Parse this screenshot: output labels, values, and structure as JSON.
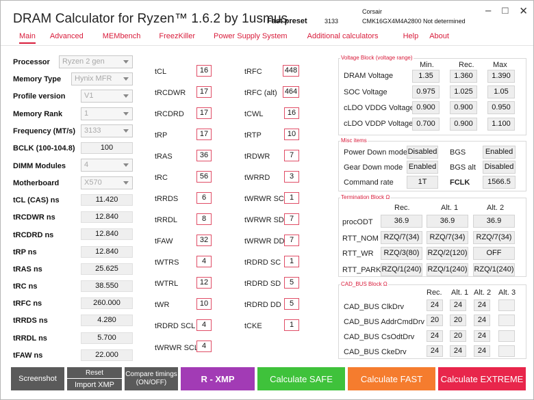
{
  "app": {
    "title": "DRAM Calculator for Ryzen™ 1.6.2 by 1usmus",
    "fast_preset_label": "Fast preset",
    "fast_preset_value": "3133",
    "memory_brand": "Corsair",
    "memory_part": "CMK16GX4M4A2800 Not determined",
    "window_buttons": {
      "minimize": "–",
      "maximize": "□",
      "close": "✕"
    }
  },
  "menu": [
    "Main",
    "Advanced",
    "MEMbench",
    "FreezKiller",
    "Power Supply System",
    "Additional calculators",
    "Help",
    "About"
  ],
  "left_settings": [
    {
      "label": "Processor",
      "value": "Ryzen 2 gen",
      "type": "combo"
    },
    {
      "label": "Memory Type",
      "value": "Hynix MFR",
      "type": "combo"
    },
    {
      "label": "Profile version",
      "value": "V1",
      "type": "combo"
    },
    {
      "label": "Memory Rank",
      "value": "1",
      "type": "combo"
    },
    {
      "label": "Frequency (MT/s)",
      "value": "3133",
      "type": "combo"
    },
    {
      "label": "BCLK (100-104.8)",
      "value": "100",
      "type": "box"
    },
    {
      "label": "DIMM Modules",
      "value": "4",
      "type": "combo"
    },
    {
      "label": "Motherboard",
      "value": "X570",
      "type": "combo"
    }
  ],
  "ns_values": [
    {
      "label": "tCL (CAS) ns",
      "value": "11.420"
    },
    {
      "label": "tRCDWR ns",
      "value": "12.840"
    },
    {
      "label": "tRCDRD ns",
      "value": "12.840"
    },
    {
      "label": "tRP ns",
      "value": "12.840"
    },
    {
      "label": "tRAS ns",
      "value": "25.625"
    },
    {
      "label": "tRC ns",
      "value": "38.550"
    },
    {
      "label": "tRFC ns",
      "value": "260.000"
    },
    {
      "label": "tRRDS ns",
      "value": "4.280"
    },
    {
      "label": "tRRDL ns",
      "value": "5.700"
    },
    {
      "label": "tFAW ns",
      "value": "22.000"
    }
  ],
  "timings_col1": [
    {
      "label": "tCL",
      "value": "16"
    },
    {
      "label": "tRCDWR",
      "value": "17"
    },
    {
      "label": "tRCDRD",
      "value": "17"
    },
    {
      "label": "tRP",
      "value": "17"
    },
    {
      "label": "tRAS",
      "value": "36"
    },
    {
      "label": "tRC",
      "value": "56"
    },
    {
      "label": "tRRDS",
      "value": "6"
    },
    {
      "label": "tRRDL",
      "value": "8"
    },
    {
      "label": "tFAW",
      "value": "32"
    },
    {
      "label": "tWTRS",
      "value": "4"
    },
    {
      "label": "tWTRL",
      "value": "12"
    },
    {
      "label": "tWR",
      "value": "10"
    },
    {
      "label": "tRDRD SCL",
      "value": "4"
    },
    {
      "label": "tWRWR SCL",
      "value": "4"
    }
  ],
  "timings_col2": [
    {
      "label": "tRFC",
      "value": "448"
    },
    {
      "label": "tRFC (alt)",
      "value": "464"
    },
    {
      "label": "tCWL",
      "value": "16"
    },
    {
      "label": "tRTP",
      "value": "10"
    },
    {
      "label": "tRDWR",
      "value": "7"
    },
    {
      "label": "tWRRD",
      "value": "3"
    },
    {
      "label": "tWRWR SC",
      "value": "1"
    },
    {
      "label": "tWRWR SD",
      "value": "7"
    },
    {
      "label": "tWRWR DD",
      "value": "7"
    },
    {
      "label": "tRDRD SC",
      "value": "1"
    },
    {
      "label": "tRDRD SD",
      "value": "5"
    },
    {
      "label": "tRDRD DD",
      "value": "5"
    },
    {
      "label": "tCKE",
      "value": "1"
    }
  ],
  "voltage_block": {
    "title": "Voltage Block (voltage range)",
    "headers": [
      "Min.",
      "Rec.",
      "Max"
    ],
    "rows": [
      {
        "label": "DRAM Voltage",
        "values": [
          "1.35",
          "1.360",
          "1.390"
        ]
      },
      {
        "label": "SOC Voltage",
        "values": [
          "0.975",
          "1.025",
          "1.05"
        ]
      },
      {
        "label": "cLDO VDDG Voltage",
        "values": [
          "0.900",
          "0.900",
          "0.950"
        ]
      },
      {
        "label": "cLDO VDDP Voltage",
        "values": [
          "0.700",
          "0.900",
          "1.100"
        ]
      }
    ]
  },
  "misc_items": {
    "title": "Misc items",
    "power_down_label": "Power Down mode",
    "power_down_value": "Disabled",
    "bgs_label": "BGS",
    "bgs_value": "Enabled",
    "gear_down_label": "Gear Down mode",
    "gear_down_value": "Enabled",
    "bgs_alt_label": "BGS alt",
    "bgs_alt_value": "Disabled",
    "command_rate_label": "Command rate",
    "command_rate_value": "1T",
    "fclk_label": "FCLK",
    "fclk_value": "1566.5"
  },
  "termination_block": {
    "title": "Termination Block Ω",
    "headers": [
      "Rec.",
      "Alt. 1",
      "Alt. 2"
    ],
    "rows": [
      {
        "label": "procODT",
        "values": [
          "36.9",
          "36.9",
          "36.9"
        ]
      },
      {
        "label": "RTT_NOM",
        "values": [
          "RZQ/7(34)",
          "RZQ/7(34)",
          "RZQ/7(34)"
        ]
      },
      {
        "label": "RTT_WR",
        "values": [
          "RZQ/3(80)",
          "RZQ/2(120)",
          "OFF"
        ]
      },
      {
        "label": "RTT_PARK",
        "values": [
          "RZQ/1(240)",
          "RZQ/1(240)",
          "RZQ/1(240)"
        ]
      }
    ]
  },
  "cad_bus_block": {
    "title": "CAD_BUS Block Ω",
    "headers": [
      "Rec.",
      "Alt. 1",
      "Alt. 2",
      "Alt. 3"
    ],
    "rows": [
      {
        "label": "CAD_BUS ClkDrv",
        "values": [
          "24",
          "24",
          "24",
          ""
        ]
      },
      {
        "label": "CAD_BUS AddrCmdDrv",
        "values": [
          "20",
          "20",
          "24",
          ""
        ]
      },
      {
        "label": "CAD_BUS CsOdtDrv",
        "values": [
          "24",
          "20",
          "24",
          ""
        ]
      },
      {
        "label": "CAD_BUS CkeDrv",
        "values": [
          "24",
          "24",
          "24",
          ""
        ]
      }
    ]
  },
  "bottom_buttons": {
    "screenshot": "Screenshot",
    "reset": "Reset",
    "import_xmp": "Import XMP",
    "compare": "Compare timings\n(ON/OFF)",
    "r_xmp": "R - XMP",
    "calc_safe": "Calculate SAFE",
    "calc_fast": "Calculate FAST",
    "calc_extreme": "Calculate EXTREME"
  },
  "colors": {
    "accent": "#d81b3a",
    "xmp": "#a23bb5",
    "safe": "#3fc23b",
    "fast": "#f57c2e",
    "extreme": "#e8264b",
    "dark": "#5a5a5a"
  }
}
